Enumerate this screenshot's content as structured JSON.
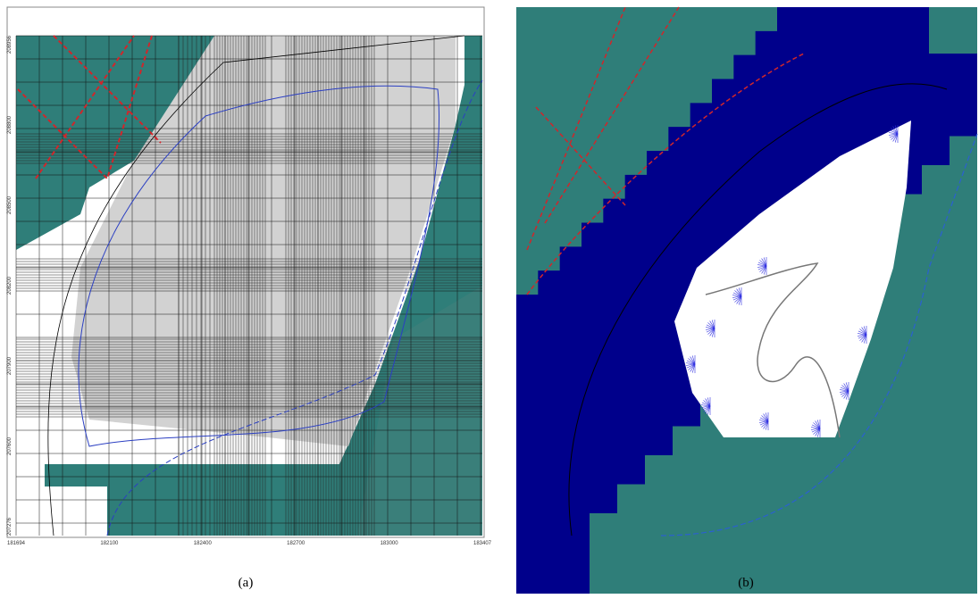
{
  "panels": [
    {
      "caption": "(a)",
      "x_labels": [
        "181694",
        "182100",
        "182400",
        "182700",
        "183000",
        "183407"
      ],
      "y_labels": [
        "208956",
        "208800",
        "208500",
        "208200",
        "207900",
        "207600",
        "207276"
      ]
    },
    {
      "caption": "(b)"
    }
  ]
}
